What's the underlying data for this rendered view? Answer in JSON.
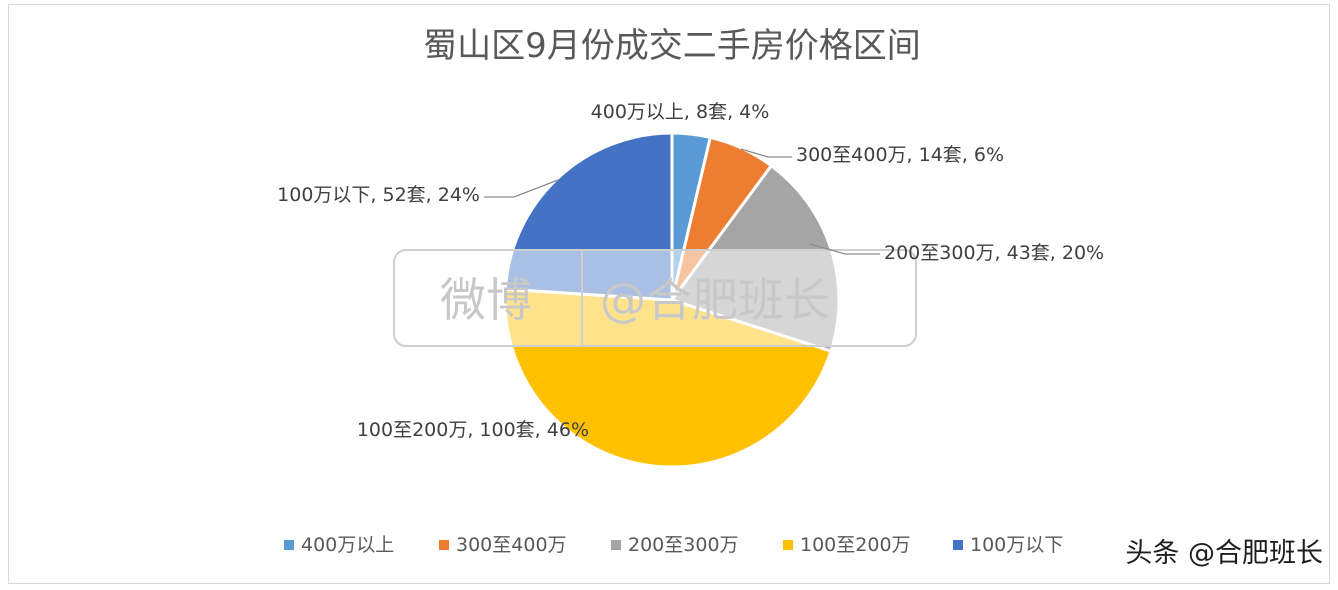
{
  "chart_data": {
    "type": "pie",
    "title": "蜀山区9月份成交二手房价格区间",
    "unit": "套",
    "series": [
      {
        "name": "400万以上",
        "value": 8,
        "percent": 4,
        "color": "#5B9BD5",
        "label": "400万以上, 8套, 4%"
      },
      {
        "name": "300至400万",
        "value": 14,
        "percent": 6,
        "color": "#ED7D31",
        "label": "300至400万, 14套, 6%"
      },
      {
        "name": "200至300万",
        "value": 43,
        "percent": 20,
        "color": "#A5A5A5",
        "label": "200至300万, 43套, 20%"
      },
      {
        "name": "100至200万",
        "value": 100,
        "percent": 46,
        "color": "#FFC000",
        "label": "100至200万, 100套, 46%"
      },
      {
        "name": "100万以下",
        "value": 52,
        "percent": 24,
        "color": "#4472C4",
        "label": "100万以下, 52套, 24%"
      }
    ],
    "legend_position": "bottom"
  },
  "watermark": {
    "center_left": "微博",
    "center_right": "@合肥班长",
    "corner": "头条 @合肥班长"
  }
}
